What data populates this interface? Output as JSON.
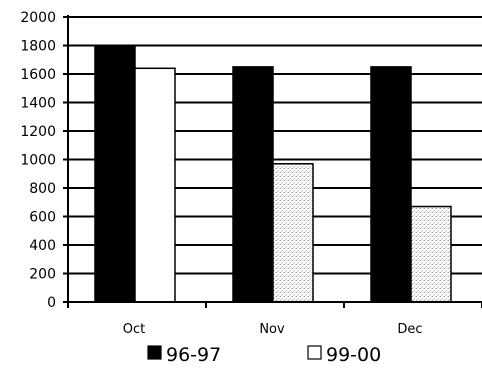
{
  "chart_data": {
    "type": "bar",
    "categories": [
      "Oct",
      "Nov",
      "Dec"
    ],
    "series": [
      {
        "name": "96-97",
        "values": [
          1800,
          1650,
          1650
        ],
        "color": "#000000"
      },
      {
        "name": "99-00",
        "values": [
          1640,
          970,
          670
        ],
        "color": "#ffffff"
      }
    ],
    "ylim": [
      0,
      2000
    ],
    "yticks": [
      "0",
      "200",
      "400",
      "600",
      "800",
      "1000",
      "1200",
      "1400",
      "1600",
      "1800",
      "2000"
    ],
    "grid": true,
    "legend": "bottom-center"
  }
}
